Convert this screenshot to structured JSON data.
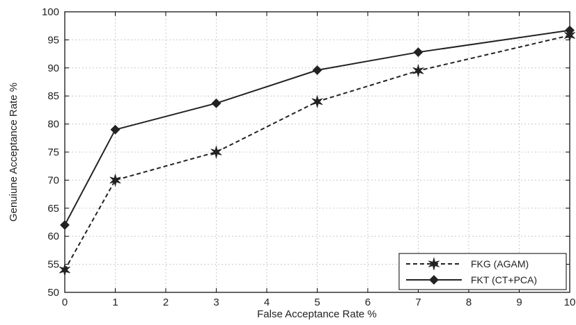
{
  "chart_data": {
    "type": "line",
    "title": "",
    "xlabel": "False Acceptance Rate %",
    "ylabel": "Genuiune Acceptance Rate %",
    "xlim": [
      0,
      10
    ],
    "ylim": [
      50,
      100
    ],
    "xticks": [
      0,
      1,
      2,
      3,
      4,
      5,
      6,
      7,
      8,
      9,
      10
    ],
    "yticks": [
      50,
      55,
      60,
      65,
      70,
      75,
      80,
      85,
      90,
      95,
      100
    ],
    "grid": true,
    "legend_position": "bottom-right",
    "series": [
      {
        "name": "FKG (AGAM)",
        "line_style": "dashed",
        "marker": "star",
        "color": "#222222",
        "x": [
          0,
          1,
          3,
          5,
          7,
          10
        ],
        "y": [
          54,
          70,
          75,
          84,
          89.5,
          95.8
        ]
      },
      {
        "name": "FKT (CT+PCA)",
        "line_style": "solid",
        "marker": "diamond",
        "color": "#222222",
        "x": [
          0,
          1,
          3,
          5,
          7,
          10
        ],
        "y": [
          62,
          79,
          83.7,
          89.6,
          92.8,
          96.7
        ]
      }
    ]
  }
}
